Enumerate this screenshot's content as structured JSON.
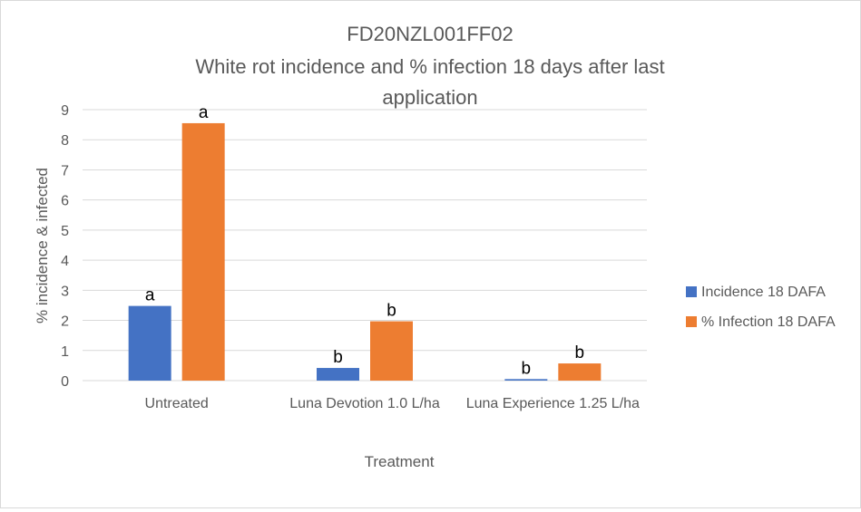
{
  "chart_data": {
    "type": "bar",
    "title": "FD20NZL001FF02",
    "subtitle": "White rot incidence and % infection 18 days after last application",
    "xlabel": "Treatment",
    "ylabel": "% incidence & infected",
    "ylim": [
      0,
      9
    ],
    "yticks": [
      0,
      1,
      2,
      3,
      4,
      5,
      6,
      7,
      8,
      9
    ],
    "grid": true,
    "legend_position": "right",
    "categories": [
      "Untreated",
      "Luna Devotion 1.0 L/ha",
      "Luna Experience 1.25 L/ha"
    ],
    "series": [
      {
        "name": "Incidence 18 DAFA",
        "color": "#4472c4",
        "values": [
          2.48,
          0.42,
          0.05
        ],
        "labels": [
          "a",
          "b",
          "b"
        ]
      },
      {
        "name": "% Infection 18 DAFA",
        "color": "#ed7d31",
        "values": [
          8.55,
          1.97,
          0.57
        ],
        "labels": [
          "a",
          "b",
          "b"
        ]
      }
    ]
  }
}
